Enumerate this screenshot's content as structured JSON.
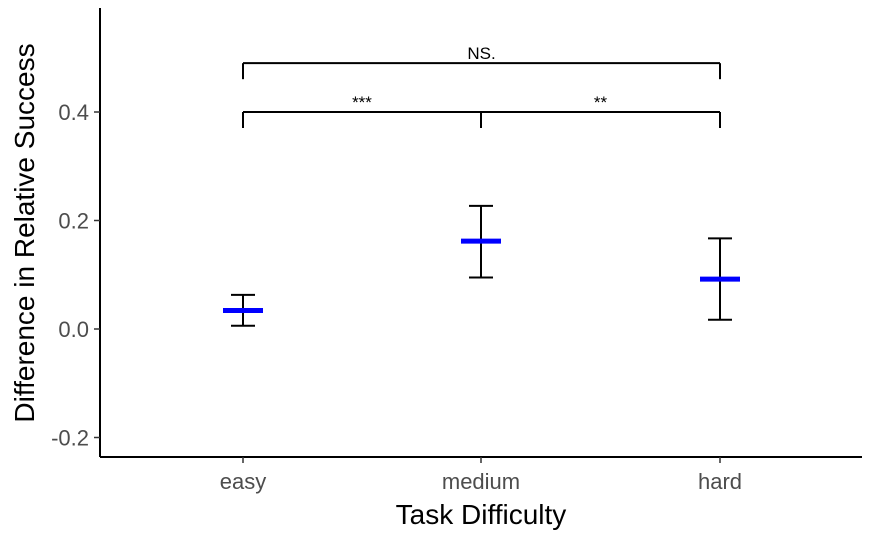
{
  "chart_data": {
    "type": "errorbar",
    "xlabel": "Task Difficulty",
    "ylabel": "Difference in Relative Success",
    "categories": [
      "easy",
      "medium",
      "hard"
    ],
    "series": [
      {
        "mean": [
          0.034,
          0.162,
          0.092
        ],
        "lower": [
          0.006,
          0.095,
          0.017
        ],
        "upper": [
          0.063,
          0.227,
          0.167
        ]
      }
    ],
    "ylim": [
      -0.22,
      0.58
    ],
    "yticks": [
      "-0.2",
      "0.0",
      "0.2",
      "0.4"
    ],
    "ytick_values": [
      -0.2,
      0.0,
      0.2,
      0.4
    ],
    "grid": false,
    "mean_color": "#0000ff",
    "errorbar_color": "#000000",
    "significance": [
      {
        "from": "easy",
        "to": "medium",
        "y": 0.4,
        "label": "***"
      },
      {
        "from": "medium",
        "to": "hard",
        "y": 0.4,
        "label": "**"
      },
      {
        "from": "easy",
        "to": "hard",
        "y": 0.49,
        "label": "NS."
      }
    ]
  }
}
